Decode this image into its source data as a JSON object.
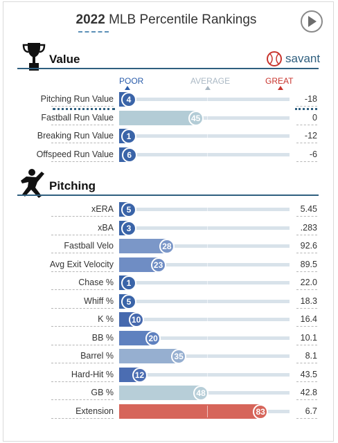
{
  "header": {
    "year": "2022",
    "title": "MLB Percentile Rankings",
    "play_icon": "play-icon"
  },
  "value_section": {
    "label": "Value",
    "icon": "trophy-icon",
    "brand": "savant",
    "brand_icon": "baseball-icon"
  },
  "scale": {
    "poor": "POOR",
    "average": "AVERAGE",
    "great": "GREAT",
    "poor_color": "#2a5caa",
    "average_color": "#aab8c4",
    "great_color": "#c8352e"
  },
  "value_rows": [
    {
      "label": "Pitching Run Value",
      "percentile": "4",
      "value": "-18",
      "color": "#3a64a8"
    },
    {
      "label": "Fastball Run Value",
      "percentile": "45",
      "value": "0",
      "color": "#b3ccd6"
    },
    {
      "label": "Breaking Run Value",
      "percentile": "1",
      "value": "-12",
      "color": "#3a64a8"
    },
    {
      "label": "Offspeed Run Value",
      "percentile": "6",
      "value": "-6",
      "color": "#3a64a8"
    }
  ],
  "pitching_section": {
    "label": "Pitching",
    "icon": "pitcher-icon"
  },
  "pitching_rows": [
    {
      "label": "xERA",
      "percentile": "5",
      "value": "5.45",
      "color": "#3a64a8"
    },
    {
      "label": "xBA",
      "percentile": "3",
      "value": ".283",
      "color": "#3a64a8"
    },
    {
      "label": "Fastball Velo",
      "percentile": "28",
      "value": "92.6",
      "color": "#7b97c8"
    },
    {
      "label": "Avg Exit Velocity",
      "percentile": "23",
      "value": "89.5",
      "color": "#6f8dc4"
    },
    {
      "label": "Chase %",
      "percentile": "1",
      "value": "22.0",
      "color": "#3a64a8"
    },
    {
      "label": "Whiff %",
      "percentile": "5",
      "value": "18.3",
      "color": "#3a64a8"
    },
    {
      "label": "K %",
      "percentile": "10",
      "value": "16.4",
      "color": "#4669ae"
    },
    {
      "label": "BB %",
      "percentile": "20",
      "value": "10.1",
      "color": "#5f81bf"
    },
    {
      "label": "Barrel %",
      "percentile": "35",
      "value": "8.1",
      "color": "#96afd0"
    },
    {
      "label": "Hard-Hit %",
      "percentile": "12",
      "value": "43.5",
      "color": "#4b6db2"
    },
    {
      "label": "GB %",
      "percentile": "48",
      "value": "42.8",
      "color": "#b7ced8"
    },
    {
      "label": "Extension",
      "percentile": "83",
      "value": "6.7",
      "color": "#d6655a"
    }
  ]
}
